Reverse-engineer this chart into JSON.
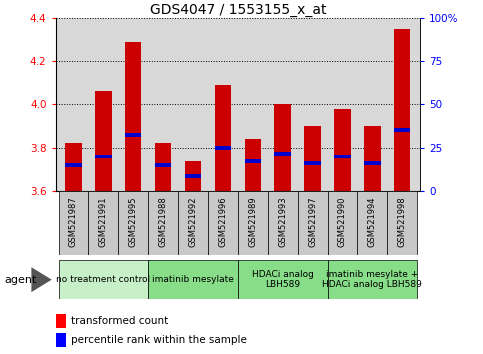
{
  "title": "GDS4047 / 1553155_x_at",
  "samples": [
    "GSM521987",
    "GSM521991",
    "GSM521995",
    "GSM521988",
    "GSM521992",
    "GSM521996",
    "GSM521989",
    "GSM521993",
    "GSM521997",
    "GSM521990",
    "GSM521994",
    "GSM521998"
  ],
  "bar_values": [
    3.82,
    4.06,
    4.29,
    3.82,
    3.74,
    4.09,
    3.84,
    4.0,
    3.9,
    3.98,
    3.9,
    4.35
  ],
  "percentile_values": [
    3.72,
    3.76,
    3.86,
    3.72,
    3.67,
    3.8,
    3.74,
    3.77,
    3.73,
    3.76,
    3.73,
    3.88
  ],
  "percentile_bar_height": 0.018,
  "y_min": 3.6,
  "y_max": 4.4,
  "y_ticks": [
    3.6,
    3.8,
    4.0,
    4.2,
    4.4
  ],
  "right_y_ticks": [
    0,
    25,
    50,
    75,
    100
  ],
  "groups": [
    {
      "label": "no treatment control",
      "start": 0,
      "end": 3
    },
    {
      "label": "imatinib mesylate",
      "start": 3,
      "end": 6
    },
    {
      "label": "HDACi analog\nLBH589",
      "start": 6,
      "end": 9
    },
    {
      "label": "imatinib mesylate +\nHDACi analog LBH589",
      "start": 9,
      "end": 12
    }
  ],
  "group_colors": [
    "#c8f0c8",
    "#88dd88",
    "#88dd88",
    "#88dd88"
  ],
  "bar_color": "#cc0000",
  "percentile_color": "#0000cc",
  "plot_bg": "#d8d8d8",
  "label_bg": "#c8c8c8",
  "bar_width": 0.55,
  "title_fontsize": 10,
  "tick_fontsize": 7.5,
  "sample_fontsize": 6,
  "group_fontsize": 6.5,
  "legend_fontsize": 7.5,
  "agent_fontsize": 8
}
